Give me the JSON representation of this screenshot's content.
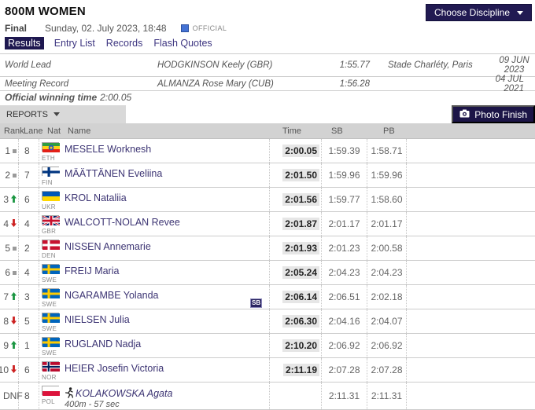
{
  "header": {
    "title": "800M WOMEN",
    "round": "Final",
    "datetime": "Sunday, 02. July 2023, 18:48",
    "status": "OFFICIAL",
    "choose_discipline_label": "Choose Discipline",
    "tabs": [
      {
        "label": "Results",
        "active": true
      },
      {
        "label": "Entry List",
        "active": false
      },
      {
        "label": "Records",
        "active": false
      },
      {
        "label": "Flash Quotes",
        "active": false
      }
    ]
  },
  "records": {
    "world_lead": {
      "label": "World Lead",
      "athlete": "HODGKINSON Keely (GBR)",
      "mark": "1:55.77",
      "venue": "Stade Charléty, Paris",
      "date": "09 JUN 2023"
    },
    "meeting_record": {
      "label": "Meeting Record",
      "athlete": "ALMANZA Rose Mary (CUB)",
      "mark": "1:56.28",
      "venue": "",
      "date": "04 JUL 2021"
    },
    "winning_time_label": "Official winning time",
    "winning_time": "2:00.05"
  },
  "toolbar": {
    "reports_label": "REPORTS",
    "photo_finish_label": "Photo Finish"
  },
  "results_table": {
    "columns": [
      "Rank",
      "Lane",
      "Nat",
      "Name",
      "Time",
      "SB",
      "PB"
    ],
    "rows": [
      {
        "rank": "1",
        "trend": "same",
        "lane": "8",
        "nat": "ETH",
        "name": "MESELE Worknesh",
        "time": "2:00.05",
        "sb": "1:59.39",
        "pb": "1:58.71"
      },
      {
        "rank": "2",
        "trend": "same",
        "lane": "7",
        "nat": "FIN",
        "name": "MÄÄTTÄNEN Eveliina",
        "time": "2:01.50",
        "sb": "1:59.96",
        "pb": "1:59.96"
      },
      {
        "rank": "3",
        "trend": "up",
        "lane": "6",
        "nat": "UKR",
        "name": "KROL Nataliia",
        "time": "2:01.56",
        "sb": "1:59.77",
        "pb": "1:58.60"
      },
      {
        "rank": "4",
        "trend": "down",
        "lane": "4",
        "nat": "GBR",
        "name": "WALCOTT-NOLAN Revee",
        "time": "2:01.87",
        "sb": "2:01.17",
        "pb": "2:01.17"
      },
      {
        "rank": "5",
        "trend": "same",
        "lane": "2",
        "nat": "DEN",
        "name": "NISSEN Annemarie",
        "time": "2:01.93",
        "sb": "2:01.23",
        "pb": "2:00.58"
      },
      {
        "rank": "6",
        "trend": "same",
        "lane": "4",
        "nat": "SWE",
        "name": "FREIJ Maria",
        "time": "2:05.24",
        "sb": "2:04.23",
        "pb": "2:04.23"
      },
      {
        "rank": "7",
        "trend": "up",
        "lane": "3",
        "nat": "SWE",
        "name": "NGARAMBE Yolanda",
        "time": "2:06.14",
        "sb": "2:06.51",
        "pb": "2:02.18",
        "badge": "SB"
      },
      {
        "rank": "8",
        "trend": "down",
        "lane": "5",
        "nat": "SWE",
        "name": "NIELSEN Julia",
        "time": "2:06.30",
        "sb": "2:04.16",
        "pb": "2:04.07"
      },
      {
        "rank": "9",
        "trend": "up",
        "lane": "1",
        "nat": "SWE",
        "name": "RUGLAND Nadja",
        "time": "2:10.20",
        "sb": "2:06.92",
        "pb": "2:06.92"
      },
      {
        "rank": "10",
        "trend": "down",
        "lane": "6",
        "nat": "NOR",
        "name": "HEIER Josefin Victoria",
        "time": "2:11.19",
        "sb": "2:07.28",
        "pb": "2:07.28"
      },
      {
        "rank": "DNF",
        "trend": "none",
        "lane": "8",
        "nat": "POL",
        "name": "KOLAKOWSKA Agata",
        "dnf": true,
        "note": "400m - 57 sec",
        "time": "",
        "sb": "2:11.31",
        "pb": "2:11.31"
      }
    ]
  },
  "colors": {
    "navy_accent": "#1e1850",
    "button_navy": "#211a52",
    "table_header_bg": "#d2d2d2",
    "time_highlight_bg": "#e6e6e6",
    "athlete_name_text": "#3c3473",
    "official_blue": "#4472d4",
    "trend_up_green": "#1a9641",
    "trend_down_red": "#cc2020"
  }
}
